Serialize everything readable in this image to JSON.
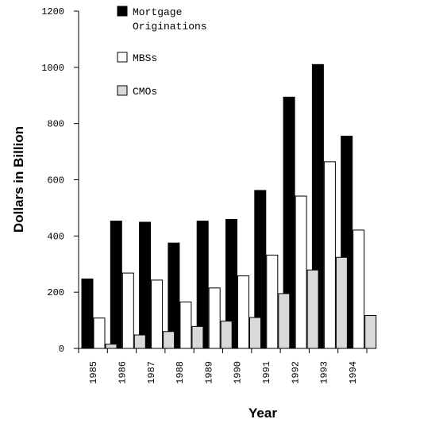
{
  "chart_data": {
    "type": "bar",
    "title": "",
    "xlabel": "Year",
    "ylabel": "Dollars in Billion",
    "ylim": [
      0,
      1200
    ],
    "yticks": [
      0,
      200,
      400,
      600,
      800,
      1000,
      1200
    ],
    "grid": false,
    "legend_placement": "top-left",
    "categories": [
      "1985",
      "1986",
      "1987",
      "1988",
      "1989",
      "1990",
      "1991",
      "1992",
      "1993",
      "1994"
    ],
    "series": [
      {
        "name": "Mortgage Originations",
        "legend_lines": [
          "Mortgage",
          "Originations"
        ],
        "color": "#000000",
        "values": [
          247,
          453,
          449,
          375,
          453,
          459,
          562,
          894,
          1010,
          755
        ]
      },
      {
        "name": "MBSs",
        "legend_lines": [
          "MBSs"
        ],
        "color": "#ffffff",
        "values": [
          108,
          268,
          243,
          165,
          215,
          258,
          332,
          542,
          664,
          421
        ]
      },
      {
        "name": "CMOs",
        "legend_lines": [
          "CMOs"
        ],
        "color": "#d9d9d9",
        "values": [
          15,
          48,
          60,
          78,
          97,
          110,
          195,
          279,
          324,
          117
        ]
      }
    ]
  }
}
